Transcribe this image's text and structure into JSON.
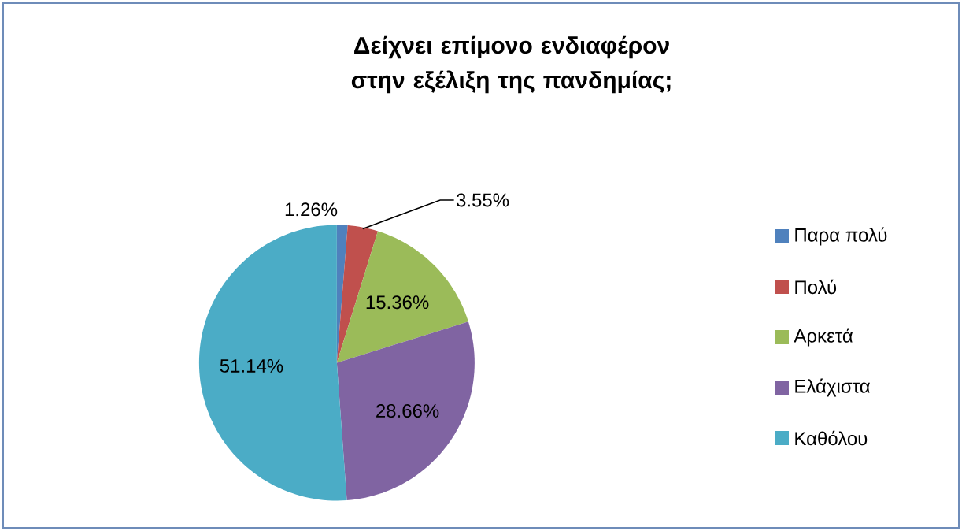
{
  "chart_data": {
    "type": "pie",
    "title": "Δείχνει επίμονο ενδιαφέρον στην εξέλιξη της πανδημίας;",
    "categories": [
      "Παρα πολύ",
      "Πολύ",
      "Αρκετά",
      "Ελάχιστα",
      "Καθόλου"
    ],
    "values": [
      1.26,
      3.55,
      15.36,
      28.66,
      51.14
    ],
    "value_labels": [
      "1.26%",
      "3.55%",
      "15.36%",
      "28.66%",
      "51.14%"
    ],
    "colors": [
      "#4f81bd",
      "#c0504d",
      "#9bbb59",
      "#8064a2",
      "#4bacc6"
    ],
    "legend": "right"
  }
}
